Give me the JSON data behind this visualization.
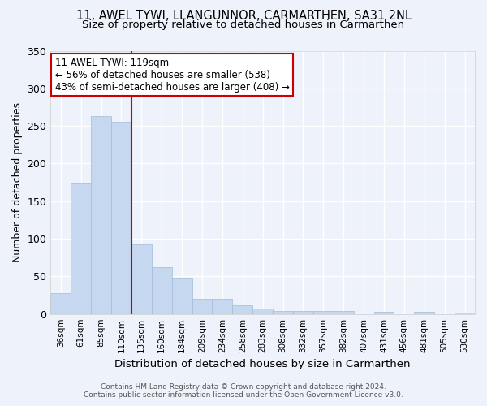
{
  "title1": "11, AWEL TYWI, LLANGUNNOR, CARMARTHEN, SA31 2NL",
  "title2": "Size of property relative to detached houses in Carmarthen",
  "xlabel": "Distribution of detached houses by size in Carmarthen",
  "ylabel": "Number of detached properties",
  "bins": [
    "36sqm",
    "61sqm",
    "85sqm",
    "110sqm",
    "135sqm",
    "160sqm",
    "184sqm",
    "209sqm",
    "234sqm",
    "258sqm",
    "283sqm",
    "308sqm",
    "332sqm",
    "357sqm",
    "382sqm",
    "407sqm",
    "431sqm",
    "456sqm",
    "481sqm",
    "505sqm",
    "530sqm"
  ],
  "values": [
    28,
    175,
    263,
    255,
    93,
    62,
    48,
    20,
    20,
    11,
    7,
    4,
    4,
    4,
    4,
    0,
    3,
    0,
    3,
    0,
    2
  ],
  "bar_color": "#c5d8f0",
  "bar_edge_color": "#a0bcd8",
  "annotation_text": "11 AWEL TYWI: 119sqm\n← 56% of detached houses are smaller (538)\n43% of semi-detached houses are larger (408) →",
  "annotation_box_color": "#ffffff",
  "annotation_box_edge": "#cc0000",
  "vline_color": "#cc0000",
  "footer1": "Contains HM Land Registry data © Crown copyright and database right 2024.",
  "footer2": "Contains public sector information licensed under the Open Government Licence v3.0.",
  "background_color": "#eef2fa",
  "grid_color": "#ffffff",
  "ylim": [
    0,
    350
  ]
}
